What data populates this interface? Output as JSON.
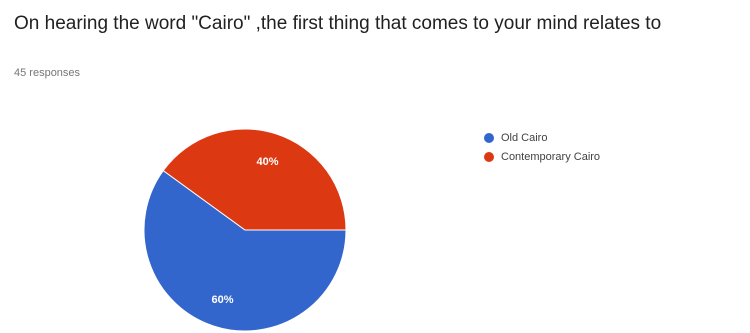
{
  "question": {
    "title": "On hearing the word \"Cairo\" ,the first thing that comes to your mind relates to",
    "responses": "45 responses"
  },
  "chart_data": {
    "type": "pie",
    "categories": [
      "Old Cairo",
      "Contemporary Cairo"
    ],
    "values": [
      60,
      40
    ],
    "labels": [
      "60%",
      "40%"
    ],
    "colors": [
      "#3366cc",
      "#dc3912"
    ],
    "legend_position": "right"
  }
}
